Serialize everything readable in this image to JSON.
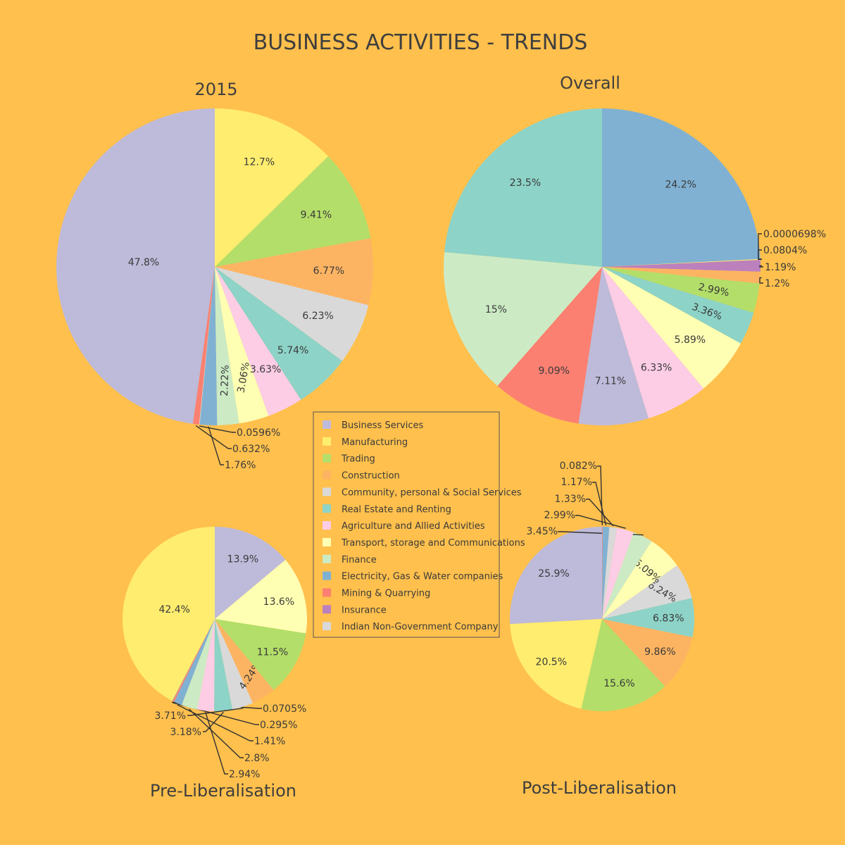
{
  "title": "BUSINESS ACTIVITIES  -  TRENDS",
  "colors": {
    "background": "#ffc04d",
    "categories": {
      "Business Services": "#bebada",
      "Manufacturing": "#ffed6f",
      "Trading": "#b3de69",
      "Construction": "#fdb462",
      "Community, personal & Social Services": "#d9d9d9",
      "Real Estate and Renting": "#8dd3c7",
      "Agriculture and Allied Activities": "#fccde5",
      "Transport, storage and Communications": "#ffffb3",
      "Finance": "#ccebc5",
      "Electricity, Gas & Water companies": "#80b1d3",
      "Mining & Quarrying": "#fb8072",
      "Insurance": "#bc80bd",
      "Indian Non-Government Company": "#d9d9d9"
    }
  },
  "legend": [
    "Business Services",
    "Manufacturing",
    "Trading",
    "Construction",
    "Community, personal & Social Services",
    "Real Estate and Renting",
    "Agriculture and Allied Activities",
    "Transport, storage and Communications",
    "Finance",
    "Electricity, Gas & Water companies",
    "Mining & Quarrying",
    "Insurance",
    "Indian Non-Government Company"
  ],
  "chart_data": [
    {
      "type": "pie",
      "title": "2015",
      "slices": [
        {
          "label": "Business Services",
          "value": 47.8,
          "text": "47.8%"
        },
        {
          "label": "Mining & Quarrying",
          "value": 0.632,
          "text": "0.632%"
        },
        {
          "label": "Indian Non-Government Company",
          "value": 0.0596,
          "text": "0.0596%"
        },
        {
          "label": "Electricity, Gas & Water companies",
          "value": 1.76,
          "text": "1.76%"
        },
        {
          "label": "Finance",
          "value": 2.22,
          "text": "2.22%"
        },
        {
          "label": "Transport, storage and Communications",
          "value": 3.06,
          "text": "3.06%"
        },
        {
          "label": "Agriculture and Allied Activities",
          "value": 3.63,
          "text": "3.63%"
        },
        {
          "label": "Real Estate and Renting",
          "value": 5.74,
          "text": "5.74%"
        },
        {
          "label": "Community, personal & Social Services",
          "value": 6.23,
          "text": "6.23%"
        },
        {
          "label": "Construction",
          "value": 6.77,
          "text": "6.77%"
        },
        {
          "label": "Trading",
          "value": 9.41,
          "text": "9.41%"
        },
        {
          "label": "Manufacturing",
          "value": 12.7,
          "text": "12.7%"
        }
      ]
    },
    {
      "type": "pie",
      "title": "Overall",
      "slices": [
        {
          "label": "Electricity, Gas & Water companies",
          "value": 24.2,
          "text": "24.2%"
        },
        {
          "label": "Indian Non-Government Company",
          "value": 6.98e-05,
          "text": "0.0000698%"
        },
        {
          "label": "Manufacturing",
          "value": 0.0804,
          "text": "0.0804%"
        },
        {
          "label": "Insurance",
          "value": 1.19,
          "text": "1.19%"
        },
        {
          "label": "Construction",
          "value": 1.2,
          "text": "1.2%"
        },
        {
          "label": "Trading",
          "value": 2.99,
          "text": "2.99%"
        },
        {
          "label": "Real Estate and Renting",
          "value": 3.36,
          "text": "3.36%"
        },
        {
          "label": "Transport, storage and Communications",
          "value": 5.89,
          "text": "5.89%"
        },
        {
          "label": "Agriculture and Allied Activities",
          "value": 6.33,
          "text": "6.33%"
        },
        {
          "label": "Business Services",
          "value": 7.11,
          "text": "7.11%"
        },
        {
          "label": "Mining & Quarrying",
          "value": 9.09,
          "text": "9.09%"
        },
        {
          "label": "Finance",
          "value": 15,
          "text": "15%"
        },
        {
          "label": "Real Estate and Renting",
          "value": 23.5,
          "text": "23.5%"
        }
      ]
    },
    {
      "type": "pie",
      "title": "Pre-Liberalisation",
      "slices": [
        {
          "label": "Manufacturing",
          "value": 42.4,
          "text": "42.4%"
        },
        {
          "label": "Electricity, Gas & Water companies",
          "value": 0.0705,
          "text": "0.0705%"
        },
        {
          "label": "Mining & Quarrying",
          "value": 0.295,
          "text": "0.295%"
        },
        {
          "label": "Electricity, Gas & Water companies",
          "value": 1.41,
          "text": "1.41%"
        },
        {
          "label": "Finance",
          "value": 2.8,
          "text": "2.8%"
        },
        {
          "label": "Agriculture and Allied Activities",
          "value": 2.94,
          "text": "2.94%"
        },
        {
          "label": "Real Estate and Renting",
          "value": 3.18,
          "text": "3.18%"
        },
        {
          "label": "Community, personal & Social Services",
          "value": 3.71,
          "text": "3.71%"
        },
        {
          "label": "Construction",
          "value": 4.24,
          "text": "4.24%"
        },
        {
          "label": "Trading",
          "value": 11.5,
          "text": "11.5%"
        },
        {
          "label": "Transport, storage and Communications",
          "value": 13.6,
          "text": "13.6%"
        },
        {
          "label": "Business Services",
          "value": 13.9,
          "text": "13.9%"
        }
      ]
    },
    {
      "type": "pie",
      "title": "Post-Liberalisation",
      "slices": [
        {
          "label": "Business Services",
          "value": 25.9,
          "text": "25.9%"
        },
        {
          "label": "Manufacturing",
          "value": 20.5,
          "text": "20.5%"
        },
        {
          "label": "Trading",
          "value": 15.6,
          "text": "15.6%"
        },
        {
          "label": "Construction",
          "value": 9.86,
          "text": "9.86%"
        },
        {
          "label": "Real Estate and Renting",
          "value": 6.83,
          "text": "6.83%"
        },
        {
          "label": "Community, personal & Social Services",
          "value": 6.24,
          "text": "6.24%"
        },
        {
          "label": "Transport, storage and Communications",
          "value": 6.09,
          "text": "6.09%"
        },
        {
          "label": "Finance",
          "value": 3.45,
          "text": "3.45%"
        },
        {
          "label": "Agriculture and Allied Activities",
          "value": 2.99,
          "text": "2.99%"
        },
        {
          "label": "Indian Non-Government Company",
          "value": 1.33,
          "text": "1.33%"
        },
        {
          "label": "Electricity, Gas & Water companies",
          "value": 1.17,
          "text": "1.17%"
        },
        {
          "label": "Mining & Quarrying",
          "value": 0.082,
          "text": "0.082%"
        }
      ]
    }
  ]
}
